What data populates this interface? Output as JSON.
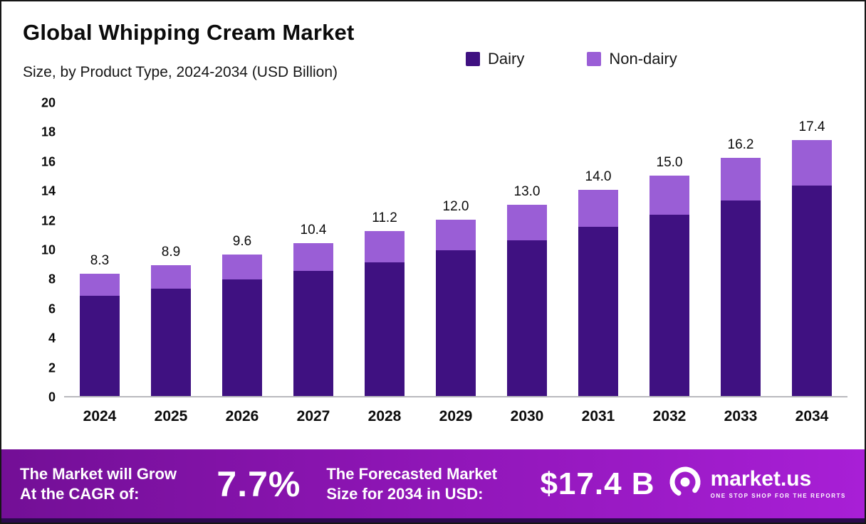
{
  "title": "Global Whipping Cream Market",
  "subtitle": "Size, by Product Type, 2024-2034 (USD Billion)",
  "legend": [
    {
      "label": "Dairy",
      "color": "#3f1181"
    },
    {
      "label": "Non-dairy",
      "color": "#9a5ed6"
    }
  ],
  "chart_data": {
    "type": "bar",
    "stacked": true,
    "title": "Global Whipping Cream Market Size, by Product Type, 2024-2034 (USD Billion)",
    "categories": [
      "2024",
      "2025",
      "2026",
      "2027",
      "2028",
      "2029",
      "2030",
      "2031",
      "2032",
      "2033",
      "2034"
    ],
    "series": [
      {
        "name": "Dairy",
        "color": "#3f1181",
        "values": [
          6.8,
          7.3,
          7.9,
          8.5,
          9.1,
          9.9,
          10.6,
          11.5,
          12.3,
          13.3,
          14.3
        ]
      },
      {
        "name": "Non-dairy",
        "color": "#9a5ed6",
        "values": [
          1.5,
          1.6,
          1.7,
          1.9,
          2.1,
          2.1,
          2.4,
          2.5,
          2.7,
          2.9,
          3.1
        ]
      }
    ],
    "total_labels": [
      "8.3",
      "8.9",
      "9.6",
      "10.4",
      "11.2",
      "12.0",
      "13.0",
      "14.0",
      "15.0",
      "16.2",
      "17.4"
    ],
    "xlabel": "",
    "ylabel": "",
    "ylim": [
      0,
      20
    ],
    "yticks": [
      0,
      2,
      4,
      6,
      8,
      10,
      12,
      14,
      16,
      18,
      20
    ],
    "grid": false,
    "legend_position": "top-right"
  },
  "banner": {
    "cagr": {
      "line1": "The Market will Grow",
      "line2": "At the CAGR of:",
      "value": "7.7%"
    },
    "forecast": {
      "line1": "The Forecasted Market",
      "line2": "Size for 2034 in USD:",
      "value": "$17.4 B"
    },
    "brand": "market.us",
    "tagline": "ONE STOP SHOP FOR THE REPORTS"
  },
  "colors": {
    "dairy": "#3f1181",
    "non_dairy": "#9a5ed6",
    "banner_gradient_start": "#730f96",
    "banner_gradient_end": "#a81fd6",
    "banner_strip": "#2b0a4d"
  }
}
